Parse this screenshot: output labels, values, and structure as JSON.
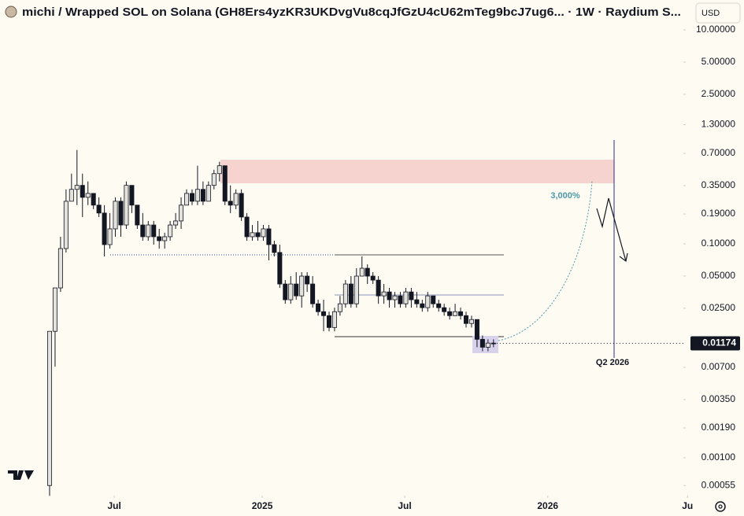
{
  "chart_data": {
    "type": "candlestick",
    "title": "michi / Wrapped SOL on Solana (GH8Ers4yzKR3UKDvgVu8cqJfGzU4cU62mTeg9bcJ7ug6... · 1W · Raydium S...",
    "currency": "USD",
    "log_scale": true,
    "grid": false,
    "up_color": "#e4e2dc",
    "down_color": "#131722",
    "categories": [
      null,
      null,
      null,
      null,
      null,
      null,
      null,
      null,
      null,
      null,
      null,
      null,
      null,
      null,
      null,
      null,
      null,
      null,
      null,
      null,
      null,
      null,
      null,
      null,
      null,
      null,
      null,
      null,
      null,
      null,
      null,
      null,
      null,
      null,
      null,
      null,
      null,
      null,
      null,
      null,
      null,
      null,
      null,
      null,
      null,
      null,
      null,
      null,
      null,
      null,
      null,
      null,
      null,
      null,
      null,
      null,
      null,
      null,
      null,
      null,
      null,
      null,
      null,
      null,
      null,
      null,
      null,
      null,
      null,
      null,
      null,
      null,
      null,
      null,
      null,
      null,
      null,
      null,
      null,
      null,
      null,
      null
    ],
    "open": [
      0.00055,
      0.0152,
      0.0387,
      0.0903,
      0.25,
      0.323,
      0.352,
      0.272,
      0.296,
      0.23,
      0.194,
      0.0983,
      0.138,
      0.25,
      0.15,
      0.352,
      0.23,
      0.15,
      0.1165,
      0.15,
      0.1165,
      0.107,
      0.1165,
      0.15,
      0.1636,
      0.23,
      0.296,
      0.25,
      0.323,
      0.25,
      0.352,
      0.453,
      0.537,
      0.25,
      0.23,
      0.296,
      0.178,
      0.1165,
      0.127,
      0.1165,
      0.138,
      0.0983,
      0.083,
      0.0421,
      0.03,
      0.0421,
      0.0326,
      0.0499,
      0.0421,
      0.0275,
      0.0232,
      0.0213,
      0.0165,
      0.0232,
      0.0275,
      0.0421,
      0.0275,
      0.0499,
      0.0591,
      0.0499,
      0.0458,
      0.0326,
      0.0355,
      0.03,
      0.0326,
      0.0275,
      0.0355,
      0.03,
      0.0275,
      0.0253,
      0.0326,
      0.0275,
      0.0253,
      0.0232,
      0.0213,
      0.0232,
      0.0213,
      0.018,
      0.0196,
      0.0128,
      0.0108,
      0.0118
    ],
    "high": [
      0.0152,
      0.0387,
      0.1165,
      0.323,
      0.453,
      0.755,
      0.453,
      0.383,
      0.296,
      0.272,
      0.23,
      0.194,
      0.272,
      0.272,
      0.383,
      0.352,
      0.23,
      0.194,
      0.1636,
      0.1636,
      0.138,
      0.127,
      0.1636,
      0.194,
      0.272,
      0.323,
      0.323,
      0.537,
      0.383,
      0.383,
      0.493,
      0.585,
      0.537,
      0.352,
      0.323,
      0.323,
      0.194,
      0.15,
      0.1636,
      0.15,
      0.15,
      0.107,
      0.0983,
      0.0458,
      0.0499,
      0.0543,
      0.0543,
      0.0543,
      0.0499,
      0.03,
      0.03,
      0.0232,
      0.0253,
      0.0326,
      0.0458,
      0.0499,
      0.0591,
      0.0762,
      0.0643,
      0.0543,
      0.0499,
      0.0421,
      0.0387,
      0.0355,
      0.0355,
      0.0387,
      0.0387,
      0.0355,
      0.03,
      0.0355,
      0.0326,
      0.03,
      0.0275,
      0.0253,
      0.0275,
      0.0253,
      0.0232,
      0.0213,
      0.0196,
      0.0139,
      0.0128,
      0.0128
    ],
    "low": [
      0.00044,
      0.0071,
      0.0355,
      0.083,
      0.25,
      0.23,
      0.178,
      0.23,
      0.211,
      0.178,
      0.0762,
      0.0903,
      0.1165,
      0.1165,
      0.138,
      0.194,
      0.138,
      0.107,
      0.107,
      0.0983,
      0.0903,
      0.0903,
      0.107,
      0.138,
      0.138,
      0.23,
      0.23,
      0.23,
      0.23,
      0.25,
      0.323,
      0.383,
      0.23,
      0.194,
      0.211,
      0.1636,
      0.107,
      0.107,
      0.107,
      0.107,
      0.07,
      0.0762,
      0.0387,
      0.0275,
      0.0275,
      0.03,
      0.0253,
      0.0355,
      0.0253,
      0.0213,
      0.0152,
      0.0152,
      0.0152,
      0.0213,
      0.0253,
      0.0253,
      0.0253,
      0.0499,
      0.0421,
      0.0421,
      0.0275,
      0.0275,
      0.0253,
      0.0253,
      0.0253,
      0.0253,
      0.0253,
      0.0253,
      0.0232,
      0.0232,
      0.0253,
      0.0232,
      0.0213,
      0.0196,
      0.0213,
      0.0196,
      0.0165,
      0.0165,
      0.0108,
      0.0099,
      0.0099,
      0.0108
    ],
    "close": [
      0.0152,
      0.0387,
      0.0903,
      0.25,
      0.323,
      0.352,
      0.272,
      0.296,
      0.23,
      0.194,
      0.0983,
      0.138,
      0.25,
      0.15,
      0.352,
      0.23,
      0.15,
      0.1165,
      0.15,
      0.1165,
      0.107,
      0.1165,
      0.15,
      0.1636,
      0.23,
      0.296,
      0.25,
      0.323,
      0.25,
      0.352,
      0.453,
      0.537,
      0.25,
      0.23,
      0.296,
      0.178,
      0.1165,
      0.127,
      0.1165,
      0.138,
      0.0983,
      0.083,
      0.0421,
      0.03,
      0.0421,
      0.0326,
      0.0499,
      0.0421,
      0.0275,
      0.0232,
      0.0213,
      0.0165,
      0.0232,
      0.0275,
      0.0421,
      0.0275,
      0.0499,
      0.0591,
      0.0499,
      0.0458,
      0.0326,
      0.0355,
      0.03,
      0.0326,
      0.0275,
      0.0355,
      0.03,
      0.0275,
      0.0253,
      0.0326,
      0.0275,
      0.0253,
      0.0232,
      0.0213,
      0.0232,
      0.0213,
      0.018,
      0.0196,
      0.0128,
      0.0108,
      0.0118,
      0.01174
    ],
    "last_price": 0.01174,
    "xlim": [
      -9.05,
      115.65
    ],
    "xticks": [
      {
        "value": 11.8,
        "label": "Jul"
      },
      {
        "value": 38.8,
        "label": "2025"
      },
      {
        "value": 64.8,
        "label": "Jul"
      },
      {
        "value": 90.9,
        "label": "2026"
      },
      {
        "value": 116.4,
        "label": "Ju"
      }
    ],
    "ylim": [
      0.000443,
      11.85
    ],
    "yticks": [
      {
        "value": 10,
        "label": "10.00000"
      },
      {
        "value": 5,
        "label": "5.00000"
      },
      {
        "value": 2.5,
        "label": "2.50000"
      },
      {
        "value": 1.3,
        "label": "1.30000"
      },
      {
        "value": 0.7,
        "label": "0.70000"
      },
      {
        "value": 0.35,
        "label": "0.35000"
      },
      {
        "value": 0.19,
        "label": "0.19000"
      },
      {
        "value": 0.1,
        "label": "0.10000"
      },
      {
        "value": 0.05,
        "label": "0.05000"
      },
      {
        "value": 0.025,
        "label": "0.02500"
      },
      {
        "value": 0.007,
        "label": "0.00700"
      },
      {
        "value": 0.0035,
        "label": "0.00350"
      },
      {
        "value": 0.0019,
        "label": "0.00190"
      },
      {
        "value": 0.001,
        "label": "0.00100"
      },
      {
        "value": 0.00055,
        "label": "0.00055"
      }
    ],
    "annotations": [
      "3,000%",
      "Q2 2026"
    ]
  }
}
